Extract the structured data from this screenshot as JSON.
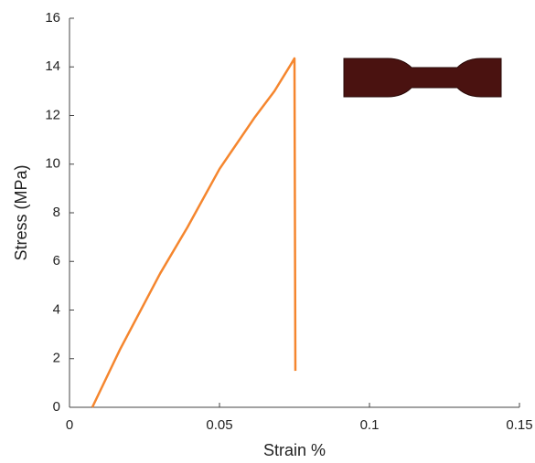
{
  "chart_data": {
    "type": "line",
    "x_label": "Strain %",
    "y_label": "Stress (MPa)",
    "xlim": [
      0,
      0.15
    ],
    "xticks": [
      0,
      0.05,
      0.1,
      0.15
    ],
    "ylim": [
      0,
      16
    ],
    "yticks": [
      0,
      2,
      4,
      6,
      8,
      10,
      12,
      14,
      16
    ],
    "series": [
      {
        "color": "#f5862e",
        "x": [
          0.0076,
          0.0168,
          0.0302,
          0.0393,
          0.05,
          0.0616,
          0.0683,
          0.0738,
          0.075,
          0.0753
        ],
        "values": [
          0,
          2.37,
          5.5,
          7.4,
          9.8,
          11.9,
          13.0,
          14.1,
          14.35,
          1.5
        ]
      }
    ]
  }
}
